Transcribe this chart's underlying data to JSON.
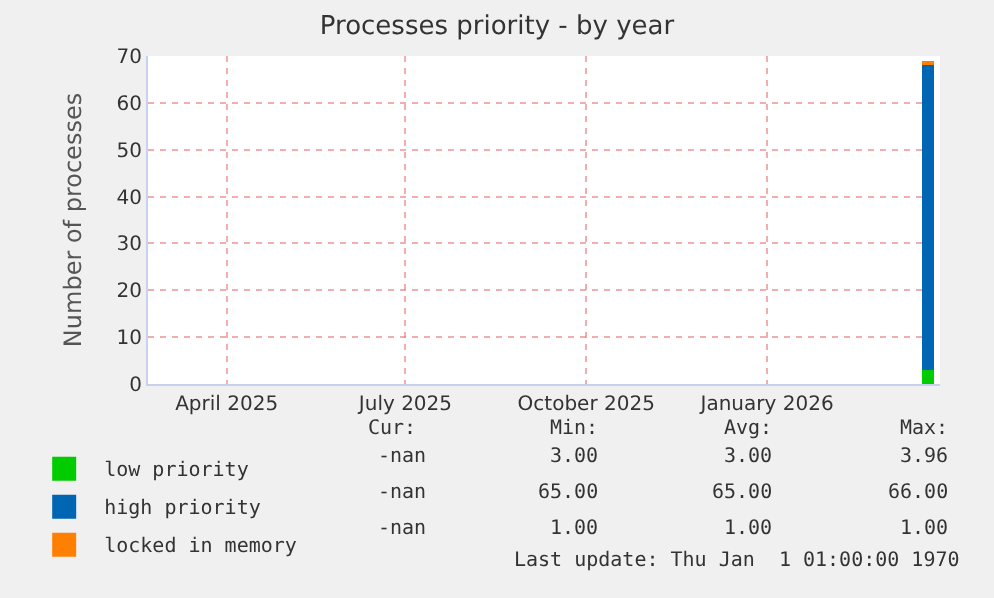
{
  "chart_data": {
    "type": "bar",
    "title": "Processes priority - by year",
    "ylabel": "Number of processes",
    "stacked": true,
    "x": [
      "2026-03-24"
    ],
    "series": [
      {
        "name": "low priority",
        "color": "#00cc00",
        "values": [
          3
        ]
      },
      {
        "name": "high priority",
        "color": "#0066b3",
        "values": [
          65
        ]
      },
      {
        "name": "locked in memory",
        "color": "#ff8000",
        "values": [
          1
        ]
      }
    ],
    "xlim": [
      "2025-02-20",
      "2026-03-30"
    ],
    "xticks": [
      {
        "value": "2025-04-01",
        "label": "April 2025"
      },
      {
        "value": "2025-07-01",
        "label": "July 2025"
      },
      {
        "value": "2025-10-01",
        "label": "October 2025"
      },
      {
        "value": "2026-01-01",
        "label": "January 2026"
      }
    ],
    "ylim": [
      0,
      70
    ],
    "yticks": [
      0,
      10,
      20,
      30,
      40,
      50,
      60,
      70
    ],
    "grid": true,
    "legend": "bottom left",
    "annotations": [
      "Cur:",
      "Min:",
      "Avg:",
      "Max:",
      "-nan",
      "3.00",
      "3.00",
      "3.96",
      "-nan",
      "65.00",
      "65.00",
      "66.00",
      "-nan",
      "1.00",
      "1.00",
      "1.00",
      "Last update: Thu Jan  1 01:00:00 1970"
    ]
  }
}
